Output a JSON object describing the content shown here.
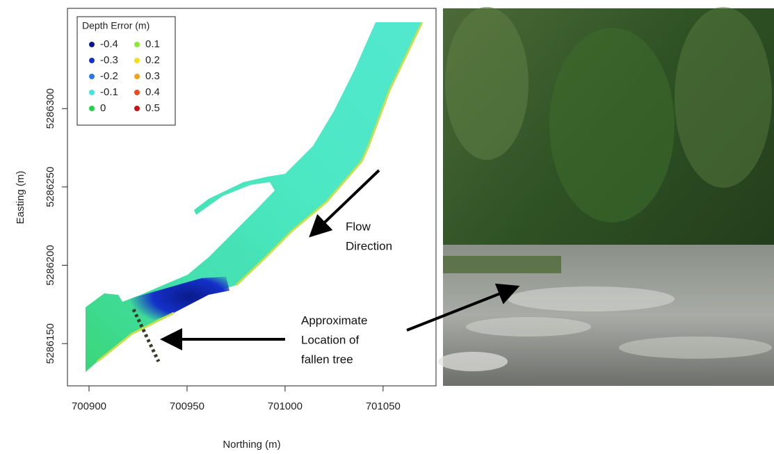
{
  "chart_data": {
    "type": "map",
    "x_label": "Northing (m)",
    "y_label": "Easting (m)",
    "xlim": [
      700889,
      701077
    ],
    "ylim": [
      5286123,
      5286364
    ],
    "xticks": [
      700900,
      700950,
      701000,
      701050
    ],
    "yticks": [
      5286150,
      5286200,
      5286250,
      5286300
    ],
    "legend": {
      "title": "Depth Error (m)",
      "position": "upper left",
      "entries": [
        {
          "label": "-0.4",
          "color": "#0a1a8a"
        },
        {
          "label": "-0.3",
          "color": "#1430c8"
        },
        {
          "label": "-0.2",
          "color": "#2a78e6"
        },
        {
          "label": "-0.1",
          "color": "#3fe6dc"
        },
        {
          "label": "0",
          "color": "#22d24a"
        },
        {
          "label": "0.1",
          "color": "#8ee83a"
        },
        {
          "label": "0.2",
          "color": "#f2e01e"
        },
        {
          "label": "0.3",
          "color": "#f5a21a"
        },
        {
          "label": "0.4",
          "color": "#ee4a1a"
        },
        {
          "label": "0.5",
          "color": "#c81414"
        }
      ]
    },
    "annotations": [
      {
        "lines": [
          "Flow",
          "Direction"
        ]
      },
      {
        "lines": [
          "Approximate",
          "Location of",
          "fallen tree"
        ]
      }
    ]
  }
}
